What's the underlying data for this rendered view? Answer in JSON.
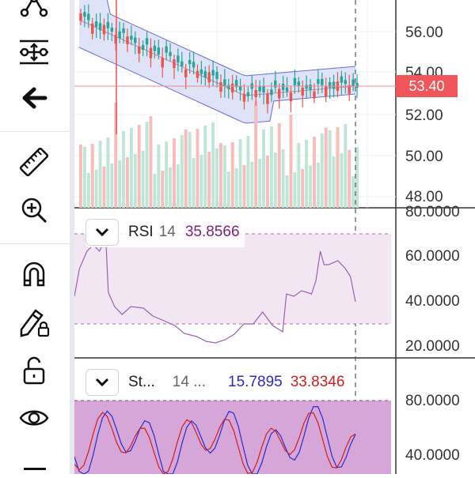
{
  "toolbar": {
    "items": [
      {
        "name": "pattern-tool-icon"
      },
      {
        "name": "indicator-settings-icon"
      },
      {
        "name": "back-arrow-icon"
      },
      {
        "name": "ruler-icon"
      },
      {
        "name": "zoom-in-icon"
      },
      {
        "name": "magnet-icon"
      },
      {
        "name": "lock-drawing-icon"
      },
      {
        "name": "unlock-icon"
      },
      {
        "name": "eye-icon"
      }
    ]
  },
  "price_panel": {
    "y_ticks": [
      "56.00",
      "54.00",
      "52.00",
      "50.00",
      "48.00"
    ],
    "current_price": "53.40"
  },
  "rsi_panel": {
    "name": "RSI",
    "length": "14",
    "value": "35.8566",
    "y_ticks": [
      "80.0000",
      "60.0000",
      "40.0000",
      "20.0000"
    ]
  },
  "stoch_panel": {
    "name": "St...",
    "params": "14 ...",
    "value_k": "15.7895",
    "value_d": "33.8346",
    "y_ticks": [
      "80.0000",
      "40.0000"
    ]
  },
  "colors": {
    "up": "#26a69a",
    "down": "#ef5350",
    "rsi": "#7e1e7e",
    "stoch_k": "#2a2ad0",
    "stoch_d": "#d01e1e"
  }
}
